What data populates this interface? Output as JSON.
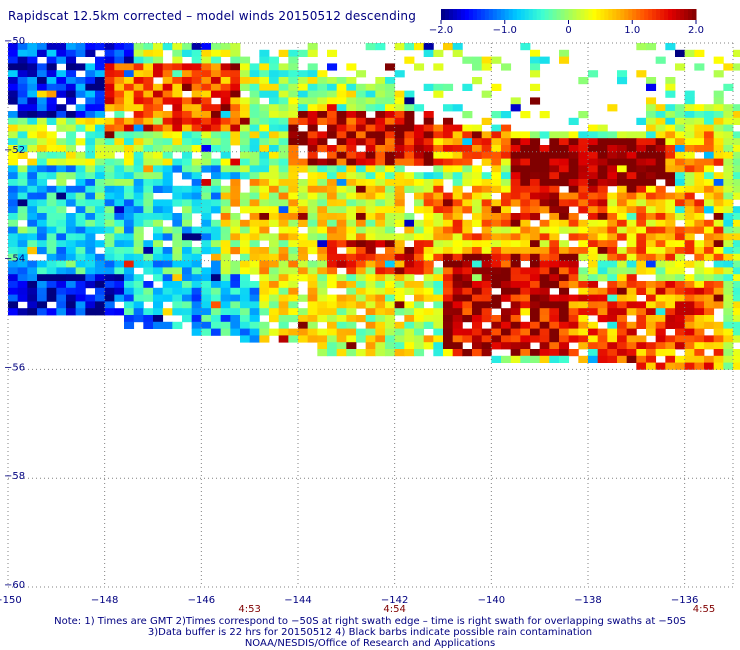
{
  "title": "Rapidscat 12.5km corrected – model winds 20150512 descending",
  "colorbar": {
    "ticks": [
      {
        "value": -2.0,
        "label": "−2.0"
      },
      {
        "value": -1.0,
        "label": "−1.0"
      },
      {
        "value": 0,
        "label": "0"
      },
      {
        "value": 1.0,
        "label": "1.0"
      },
      {
        "value": 2.0,
        "label": "2.0"
      }
    ],
    "colors": [
      "#000080",
      "#0000ff",
      "#0066ff",
      "#00ccff",
      "#40ffd0",
      "#a0ff60",
      "#ffff00",
      "#ffb000",
      "#ff5000",
      "#e00000",
      "#800000"
    ]
  },
  "notes": {
    "line1": "Note: 1) Times are GMT 2)Times correspond to −50S at right swath edge – time is right swath for overlapping swaths at −50S",
    "line2": "3)Data buffer is 22 hrs for 20150512 4) Black barbs indicate possible rain contamination",
    "line3": "NOAA/NESDIS/Office of Research and Applications"
  },
  "chart_data": {
    "type": "heatmap",
    "title": "Rapidscat 12.5km corrected – model winds 20150512 descending",
    "xlim": [
      -150,
      -135
    ],
    "ylim": [
      -60,
      -50
    ],
    "x_ticks": [
      {
        "value": -150,
        "label": "−150"
      },
      {
        "value": -148,
        "label": "−148"
      },
      {
        "value": -146,
        "label": "−146"
      },
      {
        "value": -144,
        "label": "−144"
      },
      {
        "value": -142,
        "label": "−142"
      },
      {
        "value": -140,
        "label": "−140"
      },
      {
        "value": -138,
        "label": "−138"
      },
      {
        "value": -136,
        "label": "−136"
      }
    ],
    "y_ticks": [
      {
        "value": -50,
        "label": "−50"
      },
      {
        "value": -52,
        "label": "−52"
      },
      {
        "value": -54,
        "label": "−54"
      },
      {
        "value": -56,
        "label": "−56"
      },
      {
        "value": -58,
        "label": "−58"
      },
      {
        "value": -60,
        "label": "−60"
      }
    ],
    "time_labels": [
      {
        "x": -145.0,
        "label": "4:53"
      },
      {
        "x": -142.0,
        "label": "4:54"
      },
      {
        "x": -135.6,
        "label": "4:55"
      }
    ],
    "grid": true,
    "value_range": [
      -2.0,
      2.0
    ],
    "colorbar_position": "top-right",
    "cell_size_deg": [
      0.2,
      0.125
    ],
    "regions": [
      {
        "lon": [
          -150,
          -147.4
        ],
        "lat": [
          -51.4,
          -50
        ],
        "value": -1.4
      },
      {
        "lon": [
          -148.0,
          -145.2
        ],
        "lat": [
          -51.6,
          -50.4
        ],
        "value": 1.2
      },
      {
        "lon": [
          -144.2,
          -140.6
        ],
        "lat": [
          -52.2,
          -51.3
        ],
        "value": 1.6
      },
      {
        "lon": [
          -141.2,
          -139.2
        ],
        "lat": [
          -52.3,
          -51.6
        ],
        "value": 0.9
      },
      {
        "lon": [
          -139.6,
          -136.2
        ],
        "lat": [
          -52.9,
          -51.7
        ],
        "value": 2.1
      },
      {
        "lon": [
          -136.4,
          -135.2
        ],
        "lat": [
          -52.4,
          -51.6
        ],
        "value": 0.8
      },
      {
        "lon": [
          -150,
          -145.2
        ],
        "lat": [
          -54.3,
          -52.3
        ],
        "value": -0.6
      },
      {
        "lon": [
          -145.6,
          -141.4
        ],
        "lat": [
          -54.3,
          -52.5
        ],
        "value": 0.4
      },
      {
        "lon": [
          -143.4,
          -141.2
        ],
        "lat": [
          -54.2,
          -53.6
        ],
        "value": 1.3
      },
      {
        "lon": [
          -141.4,
          -135.2
        ],
        "lat": [
          -54.0,
          -52.6
        ],
        "value": 0.8
      },
      {
        "lon": [
          -150,
          -147.6
        ],
        "lat": [
          -55.1,
          -54.3
        ],
        "value": -1.6
      },
      {
        "lon": [
          -147.6,
          -144.6
        ],
        "lat": [
          -55.5,
          -54.3
        ],
        "value": -0.8
      },
      {
        "lon": [
          -144.8,
          -141.2
        ],
        "lat": [
          -55.8,
          -54.2
        ],
        "value": 0.3
      },
      {
        "lon": [
          -141.0,
          -138.2
        ],
        "lat": [
          -55.7,
          -53.9
        ],
        "value": 1.7
      },
      {
        "lon": [
          -138.4,
          -135.2
        ],
        "lat": [
          -56.1,
          -54.4
        ],
        "value": 1.1
      },
      {
        "lon": [
          -139.6,
          -137.6
        ],
        "lat": [
          -53.2,
          -52.6
        ],
        "value": 1.5
      }
    ]
  }
}
